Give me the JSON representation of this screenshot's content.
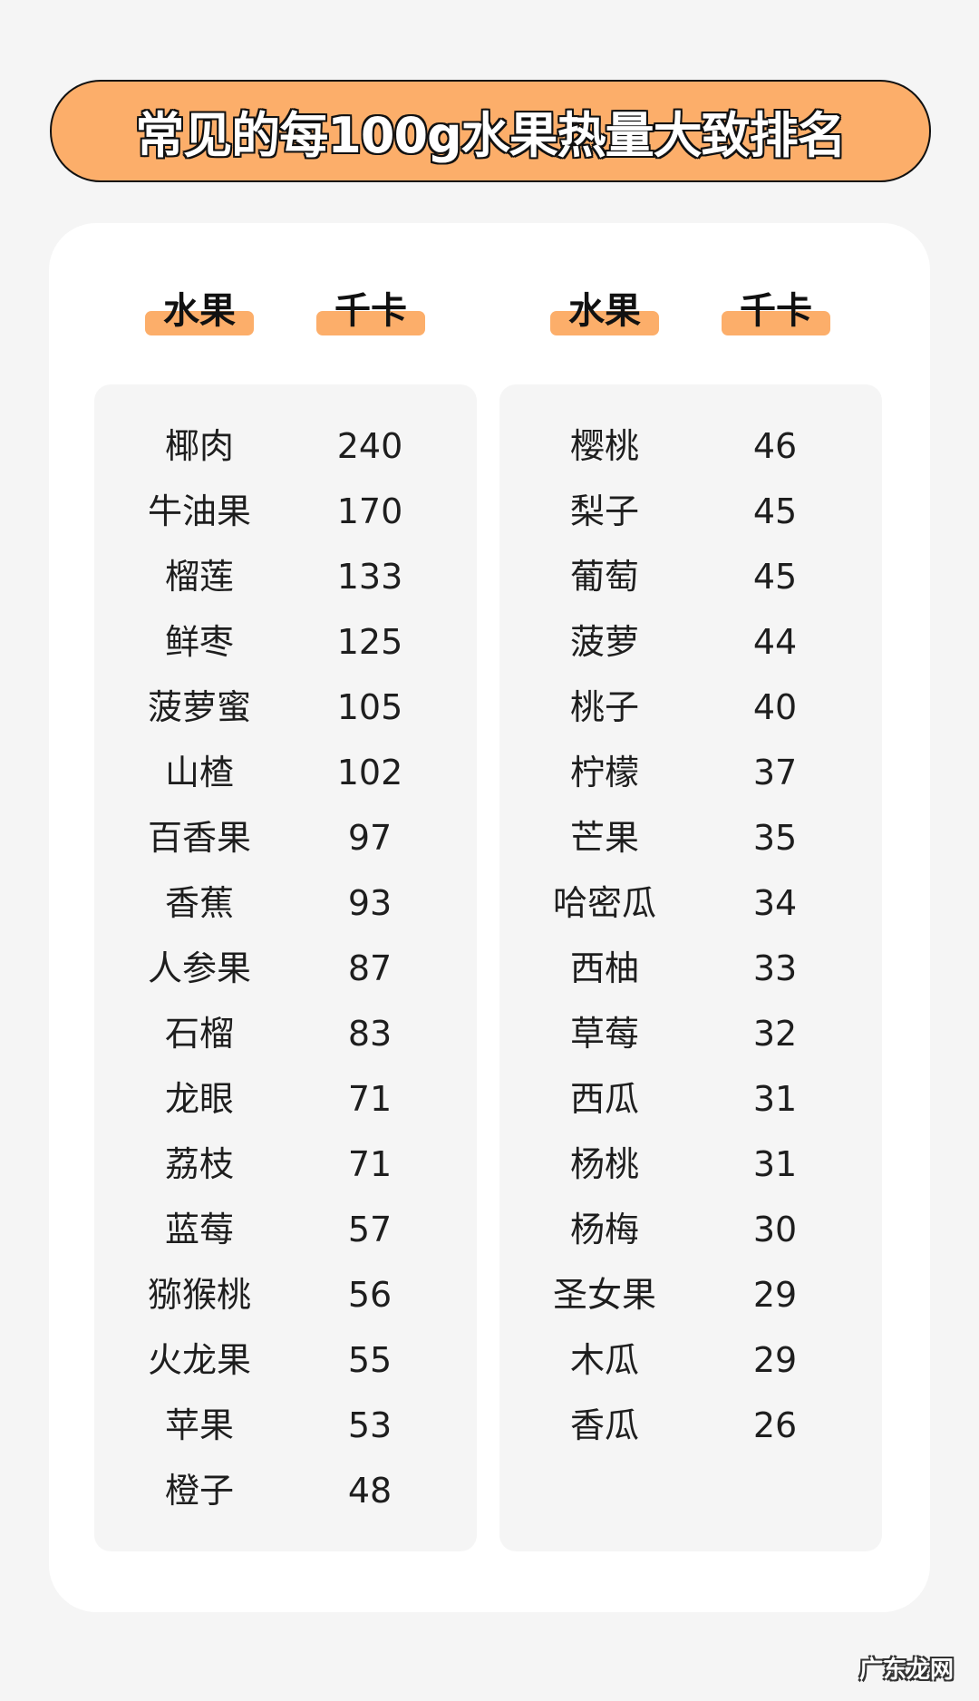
{
  "title": "常见的每100g水果热量大致排名",
  "colors": {
    "accent": "#fcae6a",
    "background": "#f5f5f5",
    "card": "#ffffff"
  },
  "headers": {
    "fruit": "水果",
    "kcal": "千卡"
  },
  "left": [
    {
      "name": "椰肉",
      "kcal": "240"
    },
    {
      "name": "牛油果",
      "kcal": "170"
    },
    {
      "name": "榴莲",
      "kcal": "133"
    },
    {
      "name": "鲜枣",
      "kcal": "125"
    },
    {
      "name": "菠萝蜜",
      "kcal": "105"
    },
    {
      "name": "山楂",
      "kcal": "102"
    },
    {
      "name": "百香果",
      "kcal": "97"
    },
    {
      "name": "香蕉",
      "kcal": "93"
    },
    {
      "name": "人参果",
      "kcal": "87"
    },
    {
      "name": "石榴",
      "kcal": "83"
    },
    {
      "name": "龙眼",
      "kcal": "71"
    },
    {
      "name": "荔枝",
      "kcal": "71"
    },
    {
      "name": "蓝莓",
      "kcal": "57"
    },
    {
      "name": "猕猴桃",
      "kcal": "56"
    },
    {
      "name": "火龙果",
      "kcal": "55"
    },
    {
      "name": "苹果",
      "kcal": "53"
    },
    {
      "name": "橙子",
      "kcal": "48"
    }
  ],
  "right": [
    {
      "name": "樱桃",
      "kcal": "46"
    },
    {
      "name": "梨子",
      "kcal": "45"
    },
    {
      "name": "葡萄",
      "kcal": "45"
    },
    {
      "name": "菠萝",
      "kcal": "44"
    },
    {
      "name": "桃子",
      "kcal": "40"
    },
    {
      "name": "柠檬",
      "kcal": "37"
    },
    {
      "name": "芒果",
      "kcal": "35"
    },
    {
      "name": "哈密瓜",
      "kcal": "34"
    },
    {
      "name": "西柚",
      "kcal": "33"
    },
    {
      "name": "草莓",
      "kcal": "32"
    },
    {
      "name": "西瓜",
      "kcal": "31"
    },
    {
      "name": "杨桃",
      "kcal": "31"
    },
    {
      "name": "杨梅",
      "kcal": "30"
    },
    {
      "name": "圣女果",
      "kcal": "29"
    },
    {
      "name": "木瓜",
      "kcal": "29"
    },
    {
      "name": "香瓜",
      "kcal": "26"
    }
  ],
  "watermark": "广东龙网"
}
